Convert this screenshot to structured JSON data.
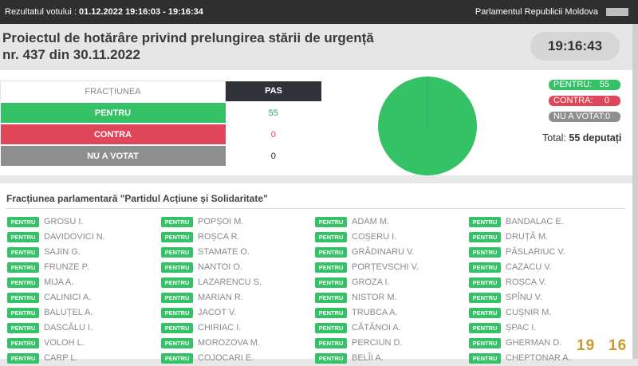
{
  "topbar": {
    "result_label": "Rezultatul votului :",
    "result_time": "01.12.2022 19:16:03 - 19:16:34",
    "parliament": "Parlamentul Republicii Moldova"
  },
  "header": {
    "title_line1": "Proiectul de hotărâre privind prelungirea stării de urgență",
    "title_line2": "nr. 437 din 30.11.2022",
    "clock": "19:16:43"
  },
  "vote_table": {
    "col1": "FRACȚIUNEA",
    "col2": "PAS",
    "pentru_label": "PENTRU",
    "pentru_value": "55",
    "contra_label": "CONTRA",
    "contra_value": "0",
    "nuvot_label": "NU A VOTAT",
    "nuvot_value": "0"
  },
  "legend": {
    "pentru_key": "PENTRU:",
    "pentru_val": "55",
    "contra_key": "CONTRA:",
    "contra_val": "0",
    "nuvot_key": "NU A VOTAT:0",
    "total_prefix": "Total:",
    "total_value": "55 deputați"
  },
  "colors": {
    "pentru": "#35c267",
    "contra": "#e0465a",
    "nuvot": "#8e8e8e"
  },
  "faction_title": "Fracțiunea parlamentară \"Partidul Acțiune și Solidaritate\"",
  "badge_label": "PENTRU",
  "deputies": {
    "col1": [
      "GROSU I.",
      "DAVIDOVICI N.",
      "SAJIN G.",
      "FRUNZE P.",
      "MIJA A.",
      "CALINICI A.",
      "BALUȚEL A.",
      "DASCĂLU I.",
      "VOLOH L.",
      "CARP L."
    ],
    "col2": [
      "POPȘOI M.",
      "ROȘCA R.",
      "STAMATE O.",
      "NANTOI O.",
      "LAZARENCU S.",
      "MARIAN R.",
      "JACOT V.",
      "CHIRIAC I.",
      "MOROZOVA M.",
      "COJOCARI E."
    ],
    "col3": [
      "ADAM M.",
      "COȘERU I.",
      "GRĂDINARU V.",
      "PORȚEVSCHI V.",
      "GROZA I.",
      "NISTOR M.",
      "TRUBCA A.",
      "CĂTĂNOI A.",
      "PERCIUN D.",
      "BELÎI A."
    ],
    "col4": [
      "BANDALAC E.",
      "DRUȚĂ M.",
      "PĂSLARIUC V.",
      "CAZACU V.",
      "ROȘCA V.",
      "SPÎNU V.",
      "CUȘNIR M.",
      "ȘPAC I.",
      "GHERMAN D.",
      "CHEPTONAR A."
    ]
  },
  "overlay": {
    "left": "19",
    "right": "16"
  }
}
